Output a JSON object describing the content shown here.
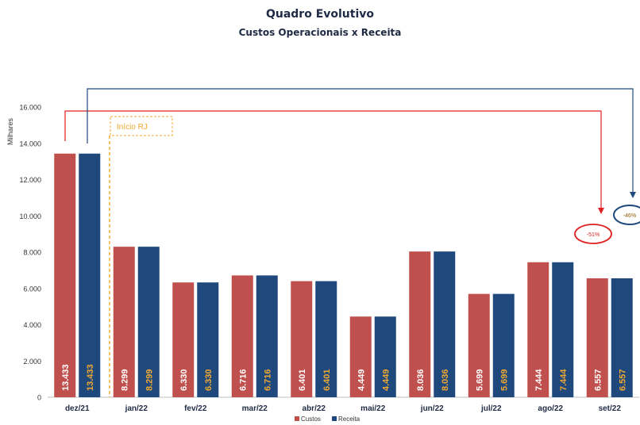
{
  "chart_data": {
    "type": "bar",
    "title": "Quadro  Evolutivo",
    "subtitle": "Custos Operacionais x Receita",
    "ylabel": "Milhares",
    "ylim": [
      0,
      16000
    ],
    "yticks": [
      "0",
      "2.000",
      "4.000",
      "6.000",
      "8.000",
      "10.000",
      "12.000",
      "14.000",
      "16.000"
    ],
    "grid": false,
    "legend_position": "bottom",
    "categories": [
      "dez/21",
      "jan/22",
      "fev/22",
      "mar/22",
      "abr/22",
      "mai/22",
      "jun/22",
      "jul/22",
      "ago/22",
      "set/22"
    ],
    "series": [
      {
        "name": "Custos",
        "color": "#c0504d",
        "label_color": "#ffffff",
        "values": [
          13433,
          8299,
          6330,
          6716,
          6401,
          4449,
          8036,
          5699,
          7444,
          6557
        ],
        "labels": [
          "13.433",
          "8.299",
          "6.330",
          "6.716",
          "6.401",
          "4.449",
          "8.036",
          "5.699",
          "7.444",
          "6.557"
        ]
      },
      {
        "name": "Receita",
        "color": "#1f497d",
        "label_color": "#f0a830",
        "values": [
          13433,
          8299,
          6330,
          6716,
          6401,
          4449,
          8036,
          5699,
          7444,
          6557
        ],
        "labels": [
          "13.433",
          "8.299",
          "6.330",
          "6.716",
          "6.401",
          "4.449",
          "8.036",
          "5.699",
          "7.444",
          "6.557"
        ]
      }
    ],
    "annotations": [
      {
        "text": "Início RJ",
        "color": "#f0a830"
      },
      {
        "text": "-51%",
        "color": "#e02020"
      },
      {
        "text": "-46%",
        "color": "#1f497d"
      }
    ]
  }
}
